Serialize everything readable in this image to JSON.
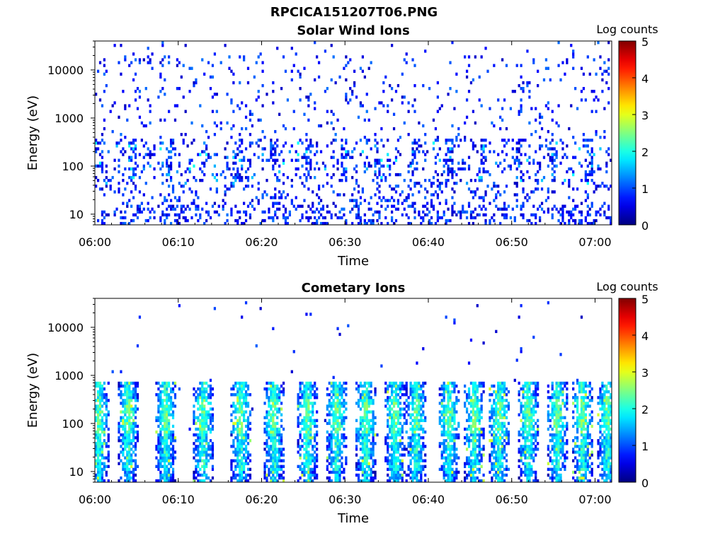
{
  "figure": {
    "title": "RPCICA151207T06.PNG"
  },
  "colors": {
    "background": "#ffffff",
    "colormap": "jet"
  },
  "chart_data": [
    {
      "type": "heatmap",
      "title": "Solar Wind Ions",
      "xlabel": "Time",
      "ylabel": "Energy (eV)",
      "x_ticks": [
        "06:00",
        "06:10",
        "06:20",
        "06:30",
        "06:40",
        "06:50",
        "07:00"
      ],
      "xlim": [
        "06:00",
        "07:02"
      ],
      "y_scale": "log",
      "y_ticks": [
        10,
        100,
        1000,
        10000
      ],
      "ylim": [
        6,
        40000
      ],
      "colorbar": {
        "label": "Log counts",
        "min": 0,
        "max": 5,
        "ticks": [
          0,
          1,
          2,
          3,
          4,
          5
        ]
      },
      "grid": false,
      "description_values": {
        "typical_log_counts": "0.3-1.5 (sparse)",
        "peak_log_counts": 2.0
      }
    },
    {
      "type": "heatmap",
      "title": "Cometary Ions",
      "xlabel": "Time",
      "ylabel": "Energy (eV)",
      "x_ticks": [
        "06:00",
        "06:10",
        "06:20",
        "06:30",
        "06:40",
        "06:50",
        "07:00"
      ],
      "xlim": [
        "06:00",
        "07:02"
      ],
      "y_scale": "log",
      "y_ticks": [
        10,
        100,
        1000,
        10000
      ],
      "ylim": [
        6,
        40000
      ],
      "colorbar": {
        "label": "Log counts",
        "min": 0,
        "max": 5,
        "ticks": [
          0,
          1,
          2,
          3,
          4,
          5
        ]
      },
      "grid": false,
      "bursts_minutes": [
        0.5,
        4,
        8.5,
        13,
        17.5,
        21.5,
        25.5,
        29,
        32.5,
        36,
        38.5,
        42.5,
        45.5,
        48.5,
        52,
        55.5,
        58.5,
        61.5
      ],
      "description_values": {
        "typical_log_counts": "1.0-2.2",
        "peak_log_counts": 3.0,
        "energy_band_eV": [
          10,
          600
        ]
      }
    }
  ]
}
